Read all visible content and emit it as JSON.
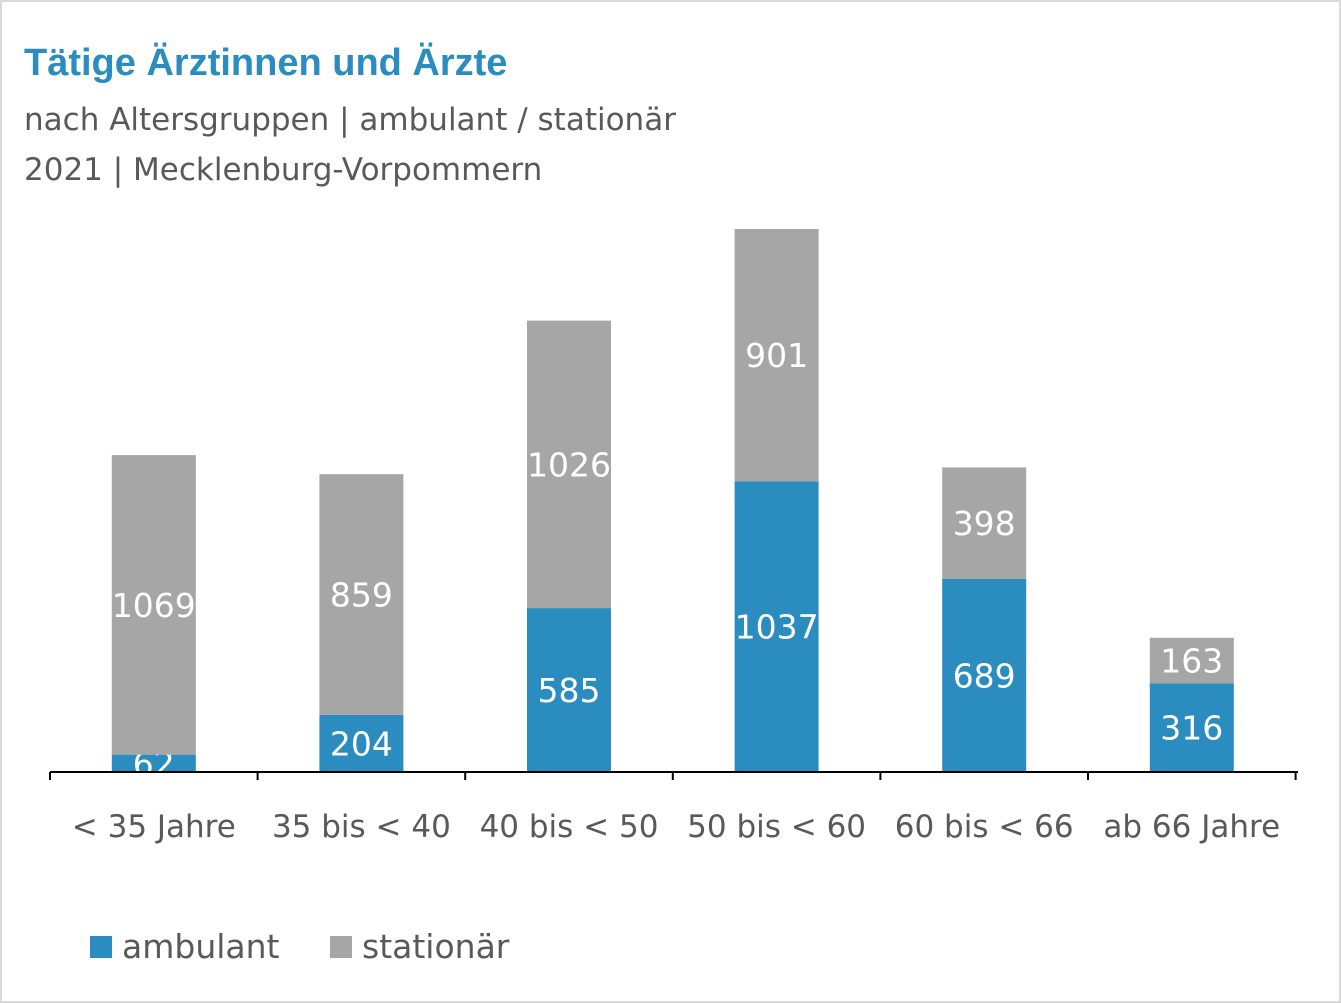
{
  "title": "Tätige Ärztinnen und Ärzte",
  "subtitle_line1": "nach Altersgruppen | ambulant / stationär",
  "subtitle_line2": "2021 | Mecklenburg-Vorpommern",
  "colors": {
    "ambulant": "#2a8cbf",
    "stationaer": "#a6a6a6",
    "title": "#2a8cbf",
    "text": "#595959"
  },
  "chart_data": {
    "type": "bar",
    "stacked": true,
    "categories": [
      "< 35 Jahre",
      "35 bis < 40",
      "40 bis < 50",
      "50 bis < 60",
      "60 bis < 66",
      "ab 66 Jahre"
    ],
    "series": [
      {
        "name": "ambulant",
        "values": [
          62,
          204,
          585,
          1037,
          689,
          316
        ]
      },
      {
        "name": "stationär",
        "values": [
          1069,
          859,
          1026,
          901,
          398,
          163
        ]
      }
    ],
    "data_labels": true,
    "grid": false,
    "legend": "bottom-left",
    "ylim": [
      0,
      1938
    ]
  }
}
